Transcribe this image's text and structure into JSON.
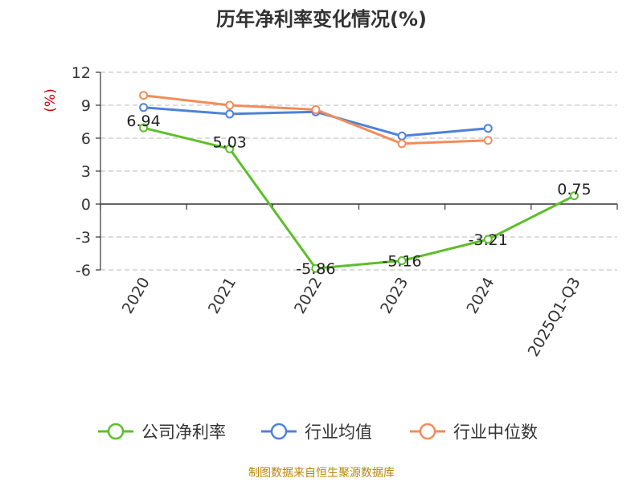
{
  "chart_data": {
    "type": "line",
    "title": "历年净利率变化情况(%)",
    "ylabel": "(%)",
    "categories": [
      "2020",
      "2021",
      "2022",
      "2023",
      "2024",
      "2025Q1-Q3"
    ],
    "yticks": [
      12,
      9,
      6,
      3,
      0,
      -3,
      -6
    ],
    "ylim": [
      -6,
      12
    ],
    "grid": true,
    "legend_position": "bottom",
    "series": [
      {
        "name": "公司净利率",
        "color": "#5cbf2a",
        "values": [
          6.94,
          5.03,
          -5.86,
          -5.16,
          -3.21,
          0.75
        ],
        "labels": [
          "6.94",
          "5.03",
          "-5.86",
          "-5.16",
          "-3.21",
          "0.75"
        ]
      },
      {
        "name": "行业均值",
        "color": "#4f81d9",
        "values": [
          8.8,
          8.2,
          8.4,
          6.2,
          6.9,
          null
        ]
      },
      {
        "name": "行业中位数",
        "color": "#f28c5a",
        "values": [
          9.9,
          9.0,
          8.6,
          5.5,
          5.8,
          null
        ]
      }
    ]
  },
  "footer": {
    "source": "制图数据来自恒生聚源数据库"
  }
}
